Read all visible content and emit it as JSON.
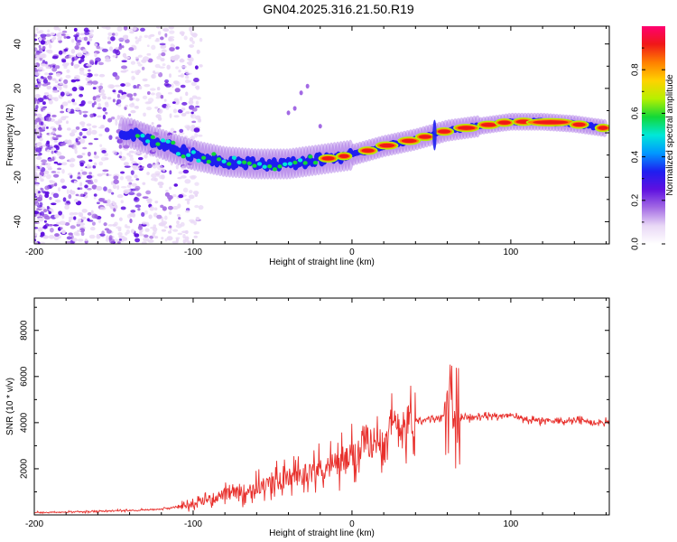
{
  "title": "GN04.2025.316.21.50.R19",
  "chart_data": [
    {
      "type": "heatmap",
      "xlabel": "Height of straight line (km)",
      "ylabel": "Frequency (Hz)",
      "xlim": [
        -200,
        162
      ],
      "ylim": [
        -50,
        48
      ],
      "xticks": [
        -200,
        -100,
        0,
        100
      ],
      "yticks": [
        -40,
        -20,
        0,
        20,
        40
      ],
      "colorbar": {
        "label": "Normalized spectral amplitude",
        "range": [
          0,
          1
        ],
        "ticks": [
          "0.0",
          "0.2",
          "0.4",
          "0.6",
          "0.8"
        ],
        "colors": [
          "#ffffff",
          "#e9d8f6",
          "#a36ae4",
          "#5f10e0",
          "#1e1ef0",
          "#0098ff",
          "#00e8d8",
          "#12d838",
          "#b6f000",
          "#ffd200",
          "#ff8000",
          "#f01818",
          "#ff0070"
        ]
      },
      "ridge": {
        "height_km": [
          -140,
          -120,
          -100,
          -80,
          -60,
          -40,
          -20,
          0,
          20,
          40,
          60,
          80,
          100,
          120,
          140,
          160
        ],
        "frequency_hz": [
          0,
          -5,
          -10,
          -13,
          -14,
          -14,
          -12,
          -10,
          -6,
          -3,
          1,
          3,
          5,
          5,
          4,
          2
        ]
      }
    },
    {
      "type": "line",
      "xlabel": "Height of straight line (km)",
      "ylabel": "SNR (10 * v/v)",
      "xlim": [
        -200,
        162
      ],
      "ylim": [
        0,
        9400
      ],
      "xticks": [
        -200,
        -100,
        0,
        100
      ],
      "yticks": [
        2000,
        4000,
        6000,
        8000
      ],
      "color": "#e8302c",
      "series": [
        {
          "x": [
            -200,
            -180,
            -160,
            -140,
            -120,
            -110,
            -100,
            -90,
            -80,
            -70,
            -60,
            -50,
            -40,
            -30,
            -20,
            -10,
            0,
            10,
            20,
            30,
            40,
            50,
            55,
            60,
            62,
            64,
            66,
            70,
            80,
            90,
            100,
            110,
            120,
            130,
            140,
            150,
            162
          ],
          "y": [
            100,
            120,
            150,
            200,
            250,
            350,
            450,
            700,
            900,
            1000,
            1200,
            1400,
            1600,
            1800,
            2000,
            2200,
            2500,
            3000,
            3500,
            3900,
            4100,
            4200,
            4200,
            4300,
            6500,
            4200,
            4250,
            4200,
            4250,
            4300,
            4300,
            4150,
            4100,
            4050,
            4100,
            4050,
            4000
          ]
        }
      ]
    }
  ]
}
